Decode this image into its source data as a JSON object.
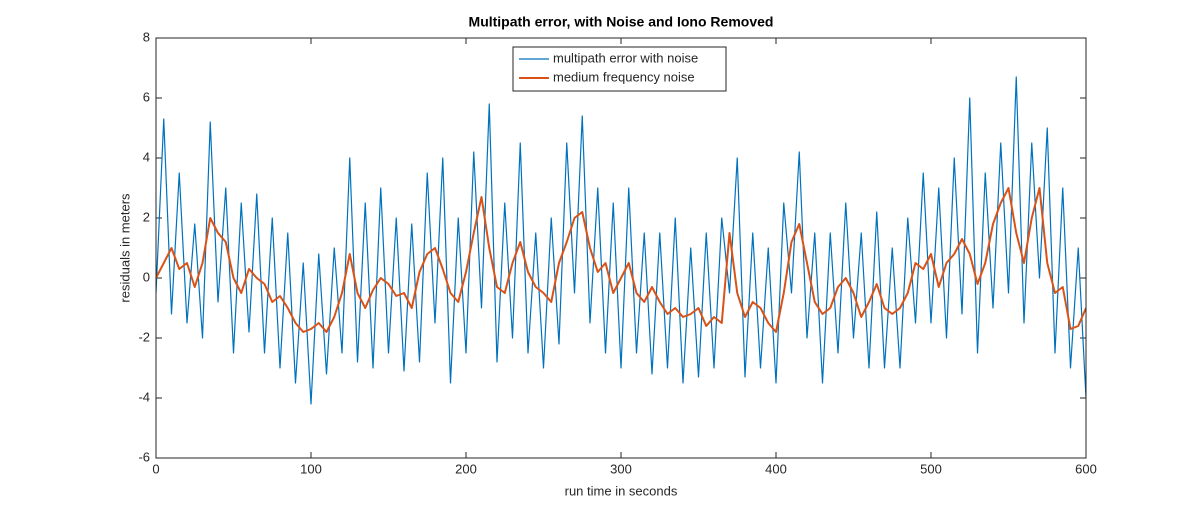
{
  "chart_data": {
    "type": "line",
    "title": "Multipath error, with Noise and Iono Removed",
    "x_label": "run time in seconds",
    "y_label": "residuals in meters",
    "x": [
      0,
      5,
      10,
      15,
      20,
      25,
      30,
      35,
      40,
      45,
      50,
      55,
      60,
      65,
      70,
      75,
      80,
      85,
      90,
      95,
      100,
      105,
      110,
      115,
      120,
      125,
      130,
      135,
      140,
      145,
      150,
      155,
      160,
      165,
      170,
      175,
      180,
      185,
      190,
      195,
      200,
      205,
      210,
      215,
      220,
      225,
      230,
      235,
      240,
      245,
      250,
      255,
      260,
      265,
      270,
      275,
      280,
      285,
      290,
      295,
      300,
      305,
      310,
      315,
      320,
      325,
      330,
      335,
      340,
      345,
      350,
      355,
      360,
      365,
      370,
      375,
      380,
      385,
      390,
      395,
      400,
      405,
      410,
      415,
      420,
      425,
      430,
      435,
      440,
      445,
      450,
      455,
      460,
      465,
      470,
      475,
      480,
      485,
      490,
      495,
      500,
      505,
      510,
      515,
      520,
      525,
      530,
      535,
      540,
      545,
      550,
      555,
      560,
      565,
      570,
      575,
      580,
      585,
      590,
      595,
      600
    ],
    "series": [
      {
        "name": "multipath error with noise",
        "color": "#0072bd",
        "width": 1.2,
        "values": [
          -0.5,
          5.3,
          -1.2,
          3.5,
          -1.5,
          1.8,
          -2.0,
          5.2,
          -0.8,
          3.0,
          -2.5,
          2.5,
          -1.8,
          2.8,
          -2.5,
          2.0,
          -3.0,
          1.5,
          -3.5,
          0.5,
          -4.2,
          0.8,
          -3.2,
          1.0,
          -2.5,
          4.0,
          -2.8,
          2.5,
          -3.0,
          3.0,
          -2.5,
          2.0,
          -3.1,
          1.8,
          -2.8,
          3.5,
          -1.5,
          4.0,
          -3.5,
          2.0,
          -2.5,
          4.2,
          -1.0,
          5.8,
          -2.8,
          2.5,
          -2.0,
          4.5,
          -2.5,
          1.5,
          -3.0,
          2.0,
          -2.2,
          4.5,
          -0.5,
          5.4,
          -1.5,
          3.0,
          -2.5,
          2.5,
          -3.0,
          3.0,
          -2.5,
          1.5,
          -3.2,
          1.5,
          -3.0,
          2.0,
          -3.5,
          1.0,
          -3.3,
          1.5,
          -3.0,
          2.0,
          -0.5,
          4.0,
          -3.3,
          1.5,
          -3.0,
          1.0,
          -3.5,
          2.5,
          -0.5,
          4.2,
          -2.0,
          1.5,
          -3.5,
          1.5,
          -2.5,
          2.5,
          -2.0,
          1.5,
          -3.0,
          2.2,
          -3.0,
          1.0,
          -3.0,
          2.0,
          -1.5,
          3.5,
          -1.5,
          3.0,
          -2.0,
          4.0,
          -1.2,
          6.0,
          -2.5,
          3.5,
          -1.0,
          4.5,
          -0.5,
          6.7,
          -1.5,
          4.5,
          0.0,
          5.0,
          -2.5,
          3.0,
          -3.0,
          1.0,
          -4.0
        ]
      },
      {
        "name": "medium frequency noise",
        "color": "#d95319",
        "width": 2,
        "values": [
          0,
          0.5,
          1.0,
          0.3,
          0.5,
          -0.3,
          0.5,
          2.0,
          1.5,
          1.2,
          0,
          -0.5,
          0.3,
          0,
          -0.2,
          -0.8,
          -0.6,
          -1.0,
          -1.5,
          -1.8,
          -1.7,
          -1.5,
          -1.8,
          -1.3,
          -0.5,
          0.8,
          -0.5,
          -1.0,
          -0.4,
          0,
          -0.2,
          -0.6,
          -0.5,
          -1.0,
          0.2,
          0.8,
          1.0,
          0.3,
          -0.5,
          -0.8,
          0.2,
          1.5,
          2.7,
          1.0,
          -0.3,
          -0.5,
          0.5,
          1.2,
          0.2,
          -0.3,
          -0.5,
          -0.8,
          0.5,
          1.2,
          2.0,
          2.2,
          1.0,
          0.2,
          0.5,
          -0.5,
          0,
          0.5,
          -0.5,
          -0.8,
          -0.3,
          -0.8,
          -1.2,
          -1.0,
          -1.3,
          -1.2,
          -1.0,
          -1.6,
          -1.3,
          -1.5,
          1.5,
          -0.5,
          -1.3,
          -0.8,
          -1.0,
          -1.5,
          -1.8,
          -0.5,
          1.2,
          1.8,
          0.5,
          -0.8,
          -1.2,
          -1.0,
          -0.3,
          0,
          -0.5,
          -1.3,
          -0.8,
          -0.2,
          -1.0,
          -1.2,
          -1.0,
          -0.5,
          0.5,
          0.3,
          0.8,
          -0.3,
          0.5,
          0.8,
          1.3,
          0.8,
          -0.2,
          0.5,
          1.8,
          2.5,
          3.0,
          1.5,
          0.5,
          2.0,
          3.0,
          0.5,
          -0.5,
          -0.3,
          -1.7,
          -1.6,
          -1.0
        ]
      }
    ],
    "xlim": [
      0,
      600
    ],
    "ylim": [
      -6,
      8
    ],
    "xticks": [
      0,
      100,
      200,
      300,
      400,
      500,
      600
    ],
    "yticks": [
      -6,
      -4,
      -2,
      0,
      2,
      4,
      6,
      8
    ],
    "legend": "top"
  }
}
